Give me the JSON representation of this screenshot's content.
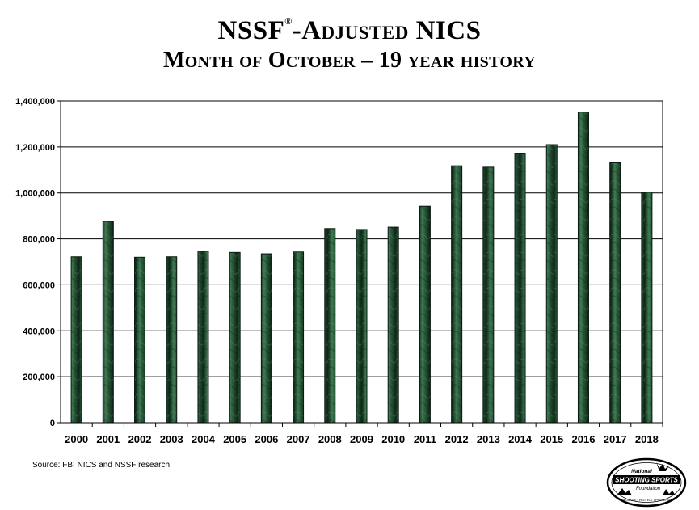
{
  "title": {
    "part1": "NSSF",
    "mark": "®",
    "part2": "-Adjusted NICS",
    "line2": "Month of October – 19 year history"
  },
  "source": "Source: FBI NICS and NSSF research",
  "logo": {
    "top_text": "National",
    "main_text": "SHOOTING SPORTS",
    "sub_text": "Foundation",
    "tagline": "PROMOTE • PROTECT • PRESERVE"
  },
  "colors": {
    "bar": "#1f4a2f",
    "bar_highlight": "#4d8a5e",
    "bar_edge": "#0a1a10"
  },
  "chart_data": {
    "type": "bar",
    "title": "NSSF®-Adjusted NICS Month of October – 19 year history",
    "xlabel": "",
    "ylabel": "",
    "categories": [
      "2000",
      "2001",
      "2002",
      "2003",
      "2004",
      "2005",
      "2006",
      "2007",
      "2008",
      "2009",
      "2010",
      "2011",
      "2012",
      "2013",
      "2014",
      "2015",
      "2016",
      "2017",
      "2018"
    ],
    "values": [
      722000,
      876000,
      720000,
      722000,
      746000,
      741000,
      735000,
      743000,
      845000,
      841000,
      851000,
      942000,
      1118000,
      1112000,
      1173000,
      1210000,
      1352000,
      1131000,
      1003000
    ],
    "yticks": [
      "0",
      "200,000",
      "400,000",
      "600,000",
      "800,000",
      "1,000,000",
      "1,200,000",
      "1,400,000"
    ],
    "ylim": [
      0,
      1400000
    ],
    "grid": true,
    "legend": "none"
  }
}
